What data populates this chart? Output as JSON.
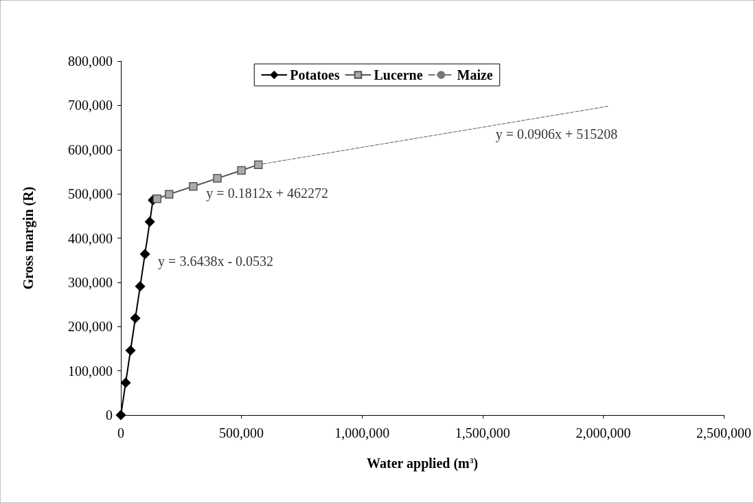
{
  "chart_data": {
    "type": "line",
    "xlabel": "Water applied (m$^{3}$)",
    "ylabel": "Gross margin (R)",
    "xlim": [
      0,
      2500000
    ],
    "xticks": [
      {
        "value": 0,
        "label": "0"
      },
      {
        "value": 500000,
        "label": "500,000"
      },
      {
        "value": 1000000,
        "label": "1,000,000"
      },
      {
        "value": 1500000,
        "label": "1,500,000"
      },
      {
        "value": 2000000,
        "label": "2,000,000"
      },
      {
        "value": 2500000,
        "label": "2,500,000"
      }
    ],
    "ylim": [
      0,
      800000
    ],
    "yticks": [
      {
        "value": 0,
        "label": "0"
      },
      {
        "value": 100000,
        "label": "100,000"
      },
      {
        "value": 200000,
        "label": "200,000"
      },
      {
        "value": 300000,
        "label": "300,000"
      },
      {
        "value": 400000,
        "label": "400,000"
      },
      {
        "value": 500000,
        "label": "500,000"
      },
      {
        "value": 600000,
        "label": "600,000"
      },
      {
        "value": 700000,
        "label": "700,000"
      },
      {
        "value": 800000,
        "label": "800,000"
      }
    ],
    "grid": false,
    "legend": "top",
    "line_style": "solid",
    "series": [
      {
        "name": "Potatoes",
        "color": "#000000",
        "marker": "diamond",
        "x": [
          0,
          20000,
          40000,
          60000,
          80000,
          100000,
          120000,
          133000
        ],
        "values": [
          0,
          73000,
          146000,
          219000,
          291000,
          364000,
          437000,
          486000
        ]
      },
      {
        "name": "Lucerne",
        "color": "#555555",
        "marker": "square",
        "x": [
          150000,
          200000,
          300000,
          400000,
          500000,
          570000
        ],
        "values": [
          489000,
          499000,
          517000,
          535000,
          553000,
          566000
        ]
      },
      {
        "name": "Maize",
        "color": "#777777",
        "marker": "none",
        "line_style": "dashed",
        "x": [
          570000,
          2020000
        ],
        "values": [
          566000,
          698000
        ]
      }
    ],
    "annotations": [
      {
        "text": "y = 3.6438x - 0.0532",
        "x": 100000,
        "y": 364000
      },
      {
        "text": "y = 0.1812x + 462272",
        "x": 300000,
        "y": 517000
      },
      {
        "text": "y = 0.0906x + 515208",
        "x": 1500000,
        "y": 651000
      }
    ]
  }
}
